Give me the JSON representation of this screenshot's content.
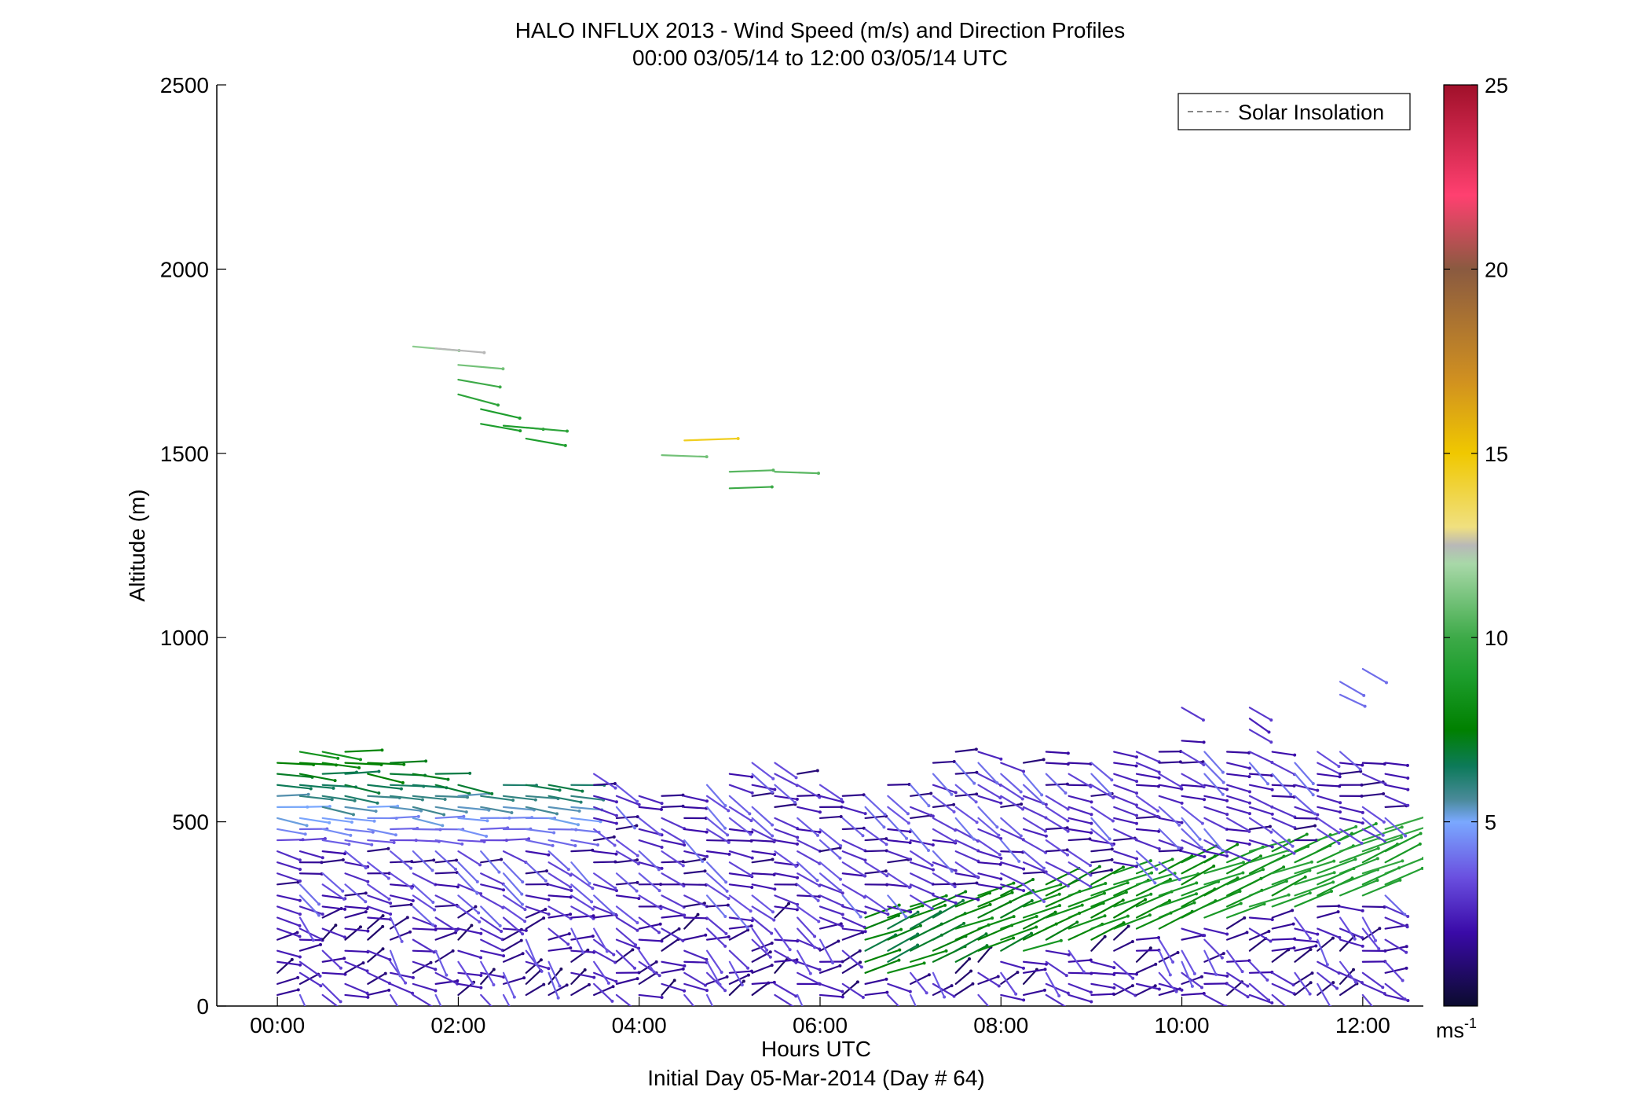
{
  "chart_data": {
    "type": "wind-barb-profile",
    "title": "HALO INFLUX 2013 - Wind Speed (m/s) and Direction Profiles",
    "subtitle": "00:00 03/05/14 to 12:00 03/05/14  UTC",
    "xlabel": "Hours UTC",
    "xlabel2": "Initial Day 05-Mar-2014 (Day # 64)",
    "ylabel": "Altitude (m)",
    "xlim": [
      -0.67,
      12.67
    ],
    "ylim": [
      0,
      2500
    ],
    "x_ticks": [
      0,
      2,
      4,
      6,
      8,
      10,
      12
    ],
    "x_tick_labels": [
      "00:00",
      "02:00",
      "04:00",
      "06:00",
      "08:00",
      "10:00",
      "12:00"
    ],
    "y_ticks": [
      0,
      500,
      1000,
      1500,
      2000,
      2500
    ],
    "y_tick_labels": [
      "0",
      "500",
      "1000",
      "1500",
      "2000",
      "2500"
    ],
    "legend": {
      "label": "Solar Insolation",
      "placement": "top-right",
      "style": "dashed",
      "color": "#888888"
    },
    "colorbar": {
      "range": [
        0,
        25
      ],
      "ticks": [
        5,
        10,
        15,
        20,
        25
      ],
      "tick_labels": [
        "5",
        "10",
        "15",
        "20",
        "25"
      ],
      "unit_base": "ms",
      "unit_exp": "-1",
      "stops": [
        [
          0,
          "#0b0b2e"
        ],
        [
          2,
          "#3a0aa8"
        ],
        [
          3.5,
          "#6a50e0"
        ],
        [
          5,
          "#7aa8ff"
        ],
        [
          5.6,
          "#4a8a9a"
        ],
        [
          6.5,
          "#0d7a5a"
        ],
        [
          7.5,
          "#008000"
        ],
        [
          9,
          "#1e9e2e"
        ],
        [
          10,
          "#3daa48"
        ],
        [
          12,
          "#a8d8a8"
        ],
        [
          12.5,
          "#b8b8b8"
        ],
        [
          13,
          "#f0e080"
        ],
        [
          15,
          "#f0c800"
        ],
        [
          17,
          "#d09020"
        ],
        [
          20,
          "#8a5a40"
        ],
        [
          22,
          "#ff4070"
        ],
        [
          25,
          "#a0102a"
        ]
      ]
    },
    "times_hours": [
      0,
      0.25,
      0.5,
      0.75,
      1,
      1.25,
      1.5,
      1.75,
      2,
      2.25,
      2.5,
      2.75,
      3,
      3.25,
      3.5,
      3.75,
      4,
      4.25,
      4.5,
      4.75,
      5,
      5.25,
      5.5,
      5.75,
      6,
      6.25,
      6.5,
      6.75,
      7,
      7.25,
      7.5,
      7.75,
      8,
      8.25,
      8.5,
      8.75,
      9,
      9.25,
      9.5,
      9.75,
      10,
      10.25,
      10.5,
      10.75,
      11,
      11.25,
      11.5,
      11.75,
      12,
      12.25
    ],
    "mixed_layer_top_m": [
      680,
      700,
      710,
      690,
      670,
      660,
      650,
      640,
      600,
      590,
      600,
      610,
      600,
      620,
      630,
      600,
      580,
      570,
      580,
      620,
      640,
      660,
      660,
      650,
      600,
      580,
      590,
      600,
      620,
      680,
      700,
      690,
      680,
      660,
      690,
      680,
      670,
      690,
      700,
      710,
      720,
      700,
      700,
      690,
      690,
      680,
      700,
      690,
      680,
      680
    ],
    "upper_level_winds": [
      {
        "t": 1.5,
        "z": 1790,
        "speed": 11.5,
        "dir": 275
      },
      {
        "t": 1.75,
        "z": 1785,
        "speed": 12.5,
        "dir": 275
      },
      {
        "t": 2.0,
        "z": 1740,
        "speed": 11,
        "dir": 275
      },
      {
        "t": 2.0,
        "z": 1700,
        "speed": 10,
        "dir": 280
      },
      {
        "t": 2.0,
        "z": 1660,
        "speed": 9.5,
        "dir": 285
      },
      {
        "t": 2.25,
        "z": 1620,
        "speed": 9,
        "dir": 283
      },
      {
        "t": 2.25,
        "z": 1580,
        "speed": 9,
        "dir": 280
      },
      {
        "t": 2.5,
        "z": 1575,
        "speed": 9,
        "dir": 275
      },
      {
        "t": 2.75,
        "z": 1570,
        "speed": 9.5,
        "dir": 275
      },
      {
        "t": 2.75,
        "z": 1540,
        "speed": 9,
        "dir": 280
      },
      {
        "t": 4.25,
        "z": 1495,
        "speed": 11,
        "dir": 272
      },
      {
        "t": 4.5,
        "z": 1535,
        "speed": 14.5,
        "dir": 268
      },
      {
        "t": 5.0,
        "z": 1450,
        "speed": 10.5,
        "dir": 268
      },
      {
        "t": 5.0,
        "z": 1405,
        "speed": 10,
        "dir": 268
      },
      {
        "t": 5.5,
        "z": 1450,
        "speed": 10.5,
        "dir": 272
      },
      {
        "t": 10.0,
        "z": 810,
        "speed": 3,
        "dir": 300
      },
      {
        "t": 10.75,
        "z": 810,
        "speed": 3,
        "dir": 300
      },
      {
        "t": 10.75,
        "z": 780,
        "speed": 2.5,
        "dir": 305
      },
      {
        "t": 10.75,
        "z": 750,
        "speed": 3,
        "dir": 300
      },
      {
        "t": 11.75,
        "z": 880,
        "speed": 4,
        "dir": 300
      },
      {
        "t": 11.75,
        "z": 845,
        "speed": 4,
        "dir": 295
      },
      {
        "t": 12.0,
        "z": 915,
        "speed": 4,
        "dir": 300
      }
    ],
    "notes": "Low-level wind barbs (0-720 m) are shown for every profile time: winds mostly from the west/west-northwest at 1-6 m/s, becoming south-southwesterly 7-9 m/s (green) in a sloping layer near 100-300 m after 06:30 UTC."
  }
}
